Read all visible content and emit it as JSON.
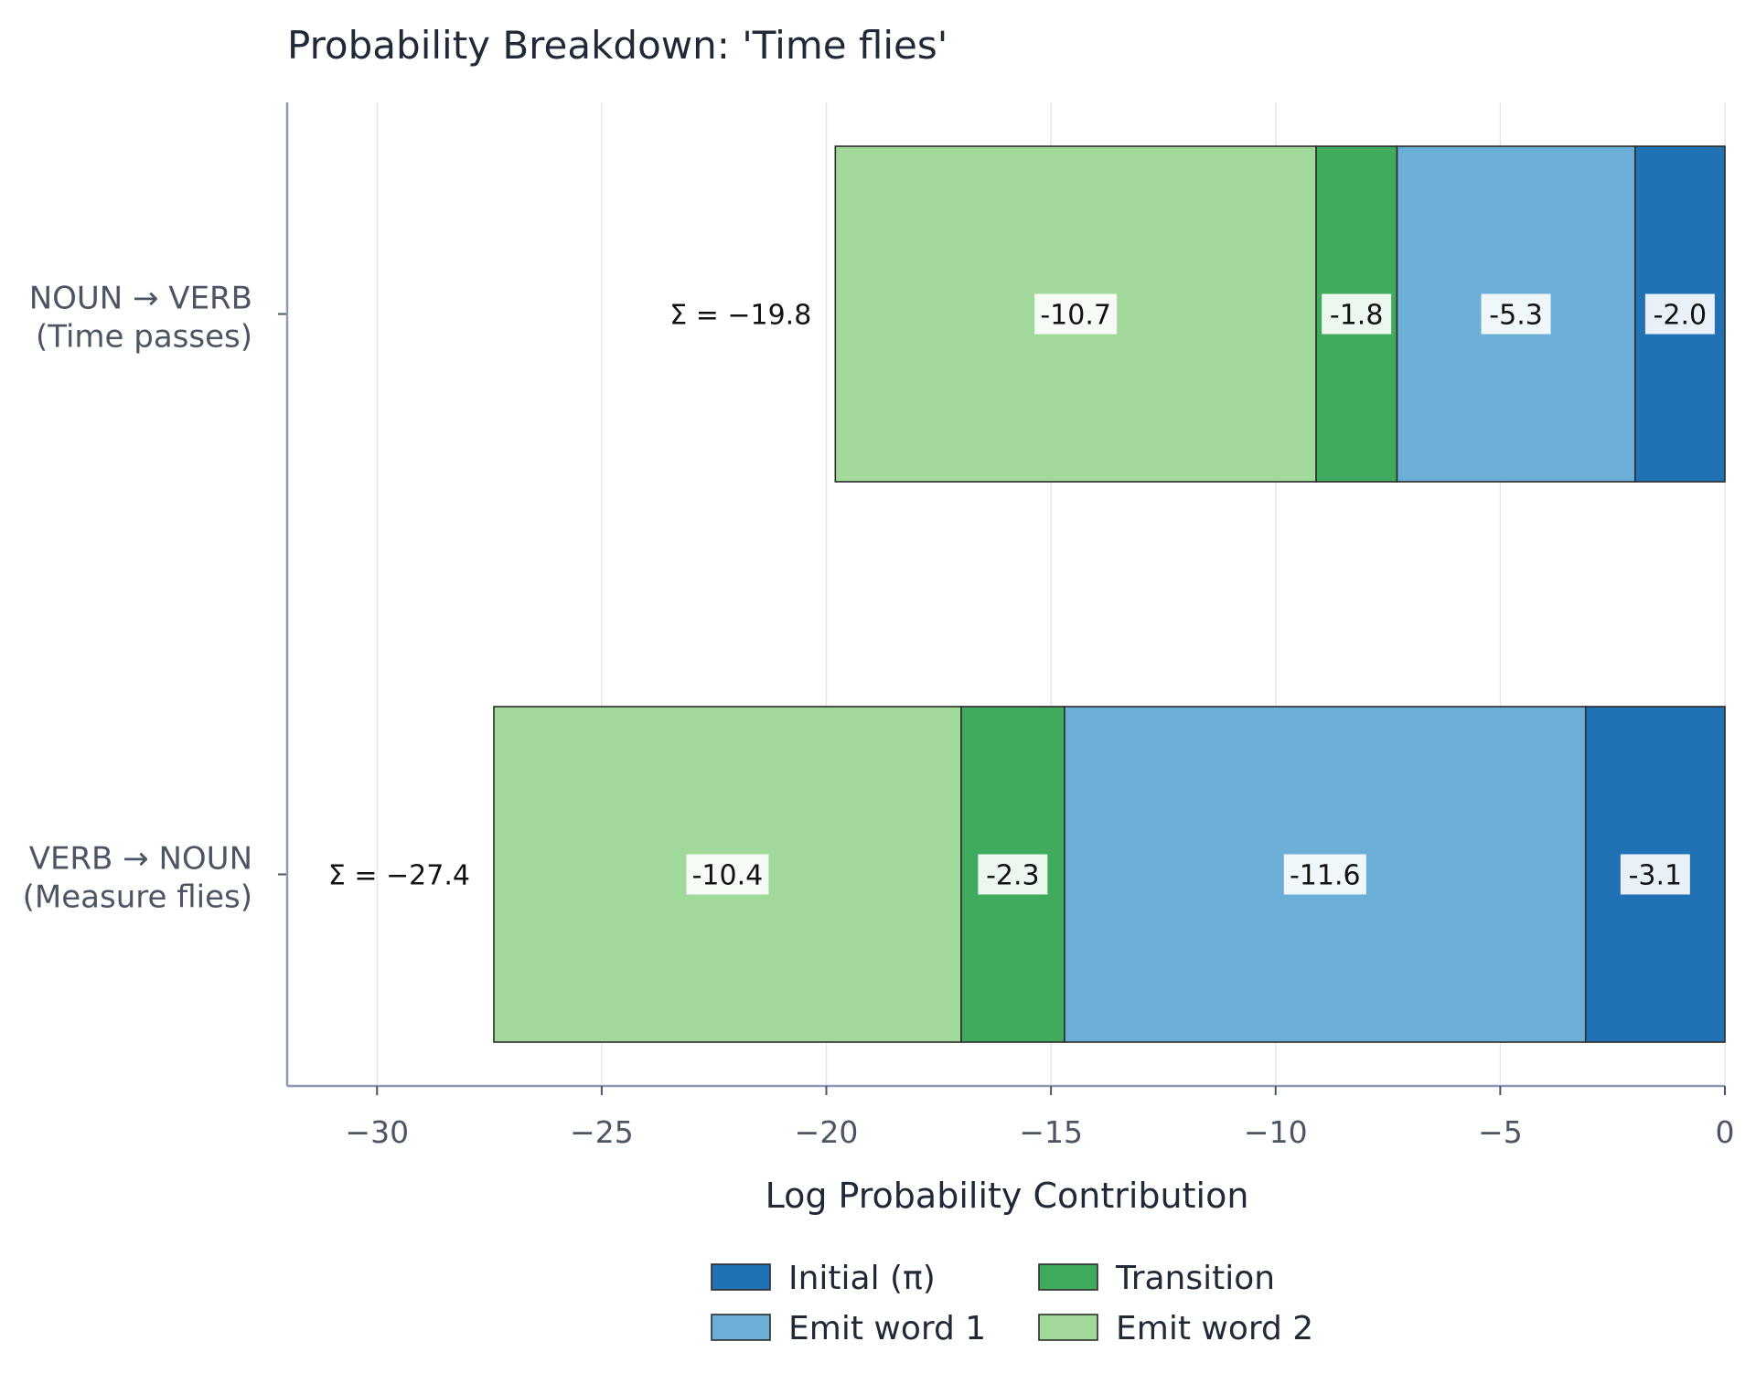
{
  "chart_data": {
    "type": "bar",
    "orientation": "horizontal",
    "stacked": true,
    "title": "Probability Breakdown: 'Time flies'",
    "xlabel": "Log Probability Contribution",
    "ylabel": "",
    "xlim": [
      -32,
      0
    ],
    "xticks": [
      -30,
      -25,
      -20,
      -15,
      -10,
      -5,
      0
    ],
    "xtick_labels": [
      "−30",
      "−25",
      "−20",
      "−15",
      "−10",
      "−5",
      "0"
    ],
    "grid": "vertical",
    "legend_position": "bottom",
    "categories": [
      {
        "line1": "NOUN → VERB",
        "line2": "(Time passes)",
        "total_label": "Σ = −19.8"
      },
      {
        "line1": "VERB → NOUN",
        "line2": "(Measure flies)",
        "total_label": "Σ = −27.4"
      }
    ],
    "series": [
      {
        "name": "Initial (π)",
        "color": "#2171b5",
        "values": [
          -2.0,
          -3.1
        ],
        "labels": [
          "-2.0",
          "-3.1"
        ]
      },
      {
        "name": "Emit word 1",
        "color": "#6baed6",
        "values": [
          -5.3,
          -11.6
        ],
        "labels": [
          "-5.3",
          "-11.6"
        ]
      },
      {
        "name": "Transition",
        "color": "#41ab5d",
        "values": [
          -1.8,
          -2.3
        ],
        "labels": [
          "-1.8",
          "-2.3"
        ]
      },
      {
        "name": "Emit word 2",
        "color": "#a1d99b",
        "values": [
          -10.7,
          -10.4
        ],
        "labels": [
          "-10.7",
          "-10.4"
        ]
      }
    ],
    "legend_order": [
      0,
      2,
      1,
      3
    ]
  }
}
